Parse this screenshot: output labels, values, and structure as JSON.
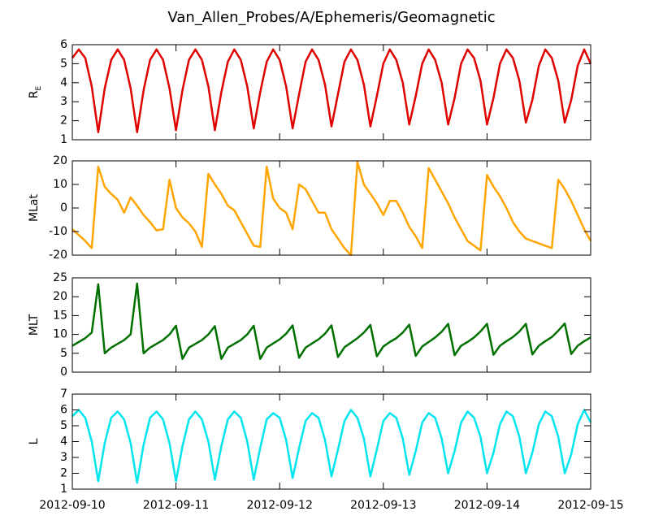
{
  "chart_data": {
    "title": "Van_Allen_Probes/A/Ephemeris/Geomagnetic",
    "x": [
      0,
      0.0625,
      0.125,
      0.1875,
      0.25,
      0.3125,
      0.375,
      0.4375,
      0.5,
      0.5625,
      0.625,
      0.6875,
      0.75,
      0.8125,
      0.875,
      0.9375,
      1,
      1.0625,
      1.125,
      1.1875,
      1.25,
      1.3125,
      1.375,
      1.4375,
      1.5,
      1.5625,
      1.625,
      1.6875,
      1.75,
      1.8125,
      1.875,
      1.9375,
      2,
      2.0625,
      2.125,
      2.1875,
      2.25,
      2.3125,
      2.375,
      2.4375,
      2.5,
      2.5625,
      2.625,
      2.6875,
      2.75,
      2.8125,
      2.875,
      2.9375,
      3,
      3.0625,
      3.125,
      3.1875,
      3.25,
      3.3125,
      3.375,
      3.4375,
      3.5,
      3.5625,
      3.625,
      3.6875,
      3.75,
      3.8125,
      3.875,
      3.9375,
      4,
      4.0625,
      4.125,
      4.1875,
      4.25,
      4.3125,
      4.375,
      4.4375,
      4.5,
      4.5625,
      4.625,
      4.6875,
      4.75,
      4.8125,
      4.875,
      4.9375,
      5
    ],
    "xlim": [
      0,
      5
    ],
    "xticks": [
      {
        "value": 0,
        "label": "2012-09-10"
      },
      {
        "value": 1,
        "label": "2012-09-11"
      },
      {
        "value": 2,
        "label": "2012-09-12"
      },
      {
        "value": 3,
        "label": "2012-09-13"
      },
      {
        "value": 4,
        "label": "2012-09-14"
      },
      {
        "value": 5,
        "label": "2012-09-15"
      }
    ],
    "panels": [
      {
        "type": "line",
        "ylabel": "R",
        "ylabel_sub": "E",
        "ylim": [
          1,
          6
        ],
        "yticks": [
          1,
          2,
          3,
          4,
          5,
          6
        ],
        "series": [
          {
            "color": "#e00000",
            "values": [
              5.3,
              5.75,
              5.3,
              3.8,
              1.4,
              3.7,
              5.2,
              5.75,
              5.2,
              3.7,
              1.4,
              3.6,
              5.2,
              5.75,
              5.2,
              3.7,
              1.5,
              3.6,
              5.2,
              5.75,
              5.2,
              3.8,
              1.5,
              3.5,
              5.1,
              5.75,
              5.2,
              3.8,
              1.6,
              3.5,
              5.1,
              5.75,
              5.2,
              3.8,
              1.6,
              3.4,
              5.1,
              5.75,
              5.2,
              3.9,
              1.7,
              3.4,
              5.1,
              5.75,
              5.2,
              3.9,
              1.7,
              3.3,
              5.0,
              5.75,
              5.2,
              4.0,
              1.8,
              3.3,
              5.0,
              5.75,
              5.2,
              4.0,
              1.8,
              3.2,
              5.0,
              5.75,
              5.3,
              4.1,
              1.8,
              3.2,
              5.0,
              5.75,
              5.3,
              4.1,
              1.9,
              3.1,
              4.9,
              5.75,
              5.3,
              4.1,
              1.9,
              3.1,
              4.9,
              5.75,
              5.0
            ]
          }
        ]
      },
      {
        "type": "line",
        "ylabel": "MLat",
        "ylim": [
          -20,
          20
        ],
        "yticks": [
          -20,
          -10,
          0,
          10,
          20
        ],
        "series": [
          {
            "color": "#ffa500",
            "values": [
              -9,
              -11.5,
              -14,
              -17,
              17.5,
              9,
              6,
              3.5,
              -2,
              4.5,
              1,
              -3,
              -6,
              -9.5,
              -9,
              12,
              0,
              -4,
              -6.5,
              -10,
              -16.5,
              14.5,
              10,
              6,
              1,
              -1,
              -6,
              -11,
              -16,
              -16.5,
              17.5,
              4,
              0,
              -2,
              -9,
              10,
              8,
              3,
              -2,
              -2,
              -9,
              -13,
              -17,
              -20,
              19.5,
              10,
              6,
              2,
              -3,
              3,
              3,
              -2,
              -8,
              -12,
              -17,
              17,
              12,
              7,
              2,
              -4,
              -9,
              -14,
              -16,
              -18,
              14,
              9,
              5,
              0,
              -6,
              -10,
              -13,
              -14,
              -15,
              -16,
              -17,
              12,
              8,
              3,
              -3,
              -9,
              -14
            ]
          }
        ]
      },
      {
        "type": "line",
        "ylabel": "MLT",
        "ylim": [
          0,
          25
        ],
        "yticks": [
          0,
          5,
          10,
          15,
          20,
          25
        ],
        "series": [
          {
            "color": "#007000",
            "values": [
              7,
              8,
              9,
              10.5,
              23.3,
              5,
              6.5,
              7.5,
              8.5,
              10,
              23.5,
              5,
              6.5,
              7.5,
              8.5,
              10,
              12.3,
              3.5,
              6.5,
              7.5,
              8.5,
              10,
              12.2,
              3.5,
              6.5,
              7.5,
              8.5,
              10,
              12.3,
              3.5,
              6.5,
              7.6,
              8.7,
              10.2,
              12.4,
              3.8,
              6.5,
              7.6,
              8.7,
              10.2,
              12.4,
              4,
              6.6,
              7.8,
              9,
              10.5,
              12.5,
              4.2,
              6.8,
              8,
              9,
              10.5,
              12.6,
              4.3,
              6.8,
              8,
              9.2,
              10.7,
              12.8,
              4.5,
              7,
              8,
              9.2,
              10.8,
              12.8,
              4.6,
              7,
              8.2,
              9.3,
              10.8,
              12.8,
              4.7,
              7,
              8.2,
              9.3,
              11,
              12.9,
              4.8,
              7,
              8.2,
              9.2
            ]
          }
        ]
      },
      {
        "type": "line",
        "ylabel": "L",
        "ylim": [
          1,
          7
        ],
        "yticks": [
          1,
          2,
          3,
          4,
          5,
          6,
          7
        ],
        "series": [
          {
            "color": "#00e5ee",
            "values": [
              5.6,
              6.0,
              5.5,
              4.0,
              1.5,
              3.9,
              5.5,
              5.9,
              5.4,
              3.9,
              1.4,
              3.8,
              5.5,
              5.9,
              5.4,
              3.9,
              1.5,
              3.7,
              5.4,
              5.9,
              5.4,
              4.0,
              1.6,
              3.7,
              5.4,
              5.9,
              5.5,
              4.0,
              1.6,
              3.6,
              5.4,
              5.8,
              5.5,
              4.1,
              1.7,
              3.6,
              5.3,
              5.8,
              5.5,
              4.1,
              1.8,
              3.5,
              5.3,
              6.0,
              5.5,
              4.2,
              1.8,
              3.5,
              5.3,
              5.8,
              5.5,
              4.2,
              1.9,
              3.4,
              5.2,
              5.8,
              5.5,
              4.2,
              2.0,
              3.4,
              5.2,
              5.9,
              5.5,
              4.3,
              2.0,
              3.3,
              5.1,
              5.9,
              5.6,
              4.3,
              2.0,
              3.3,
              5.1,
              5.9,
              5.6,
              4.3,
              2.0,
              3.2,
              5.1,
              6.0,
              5.2
            ]
          }
        ]
      }
    ]
  }
}
